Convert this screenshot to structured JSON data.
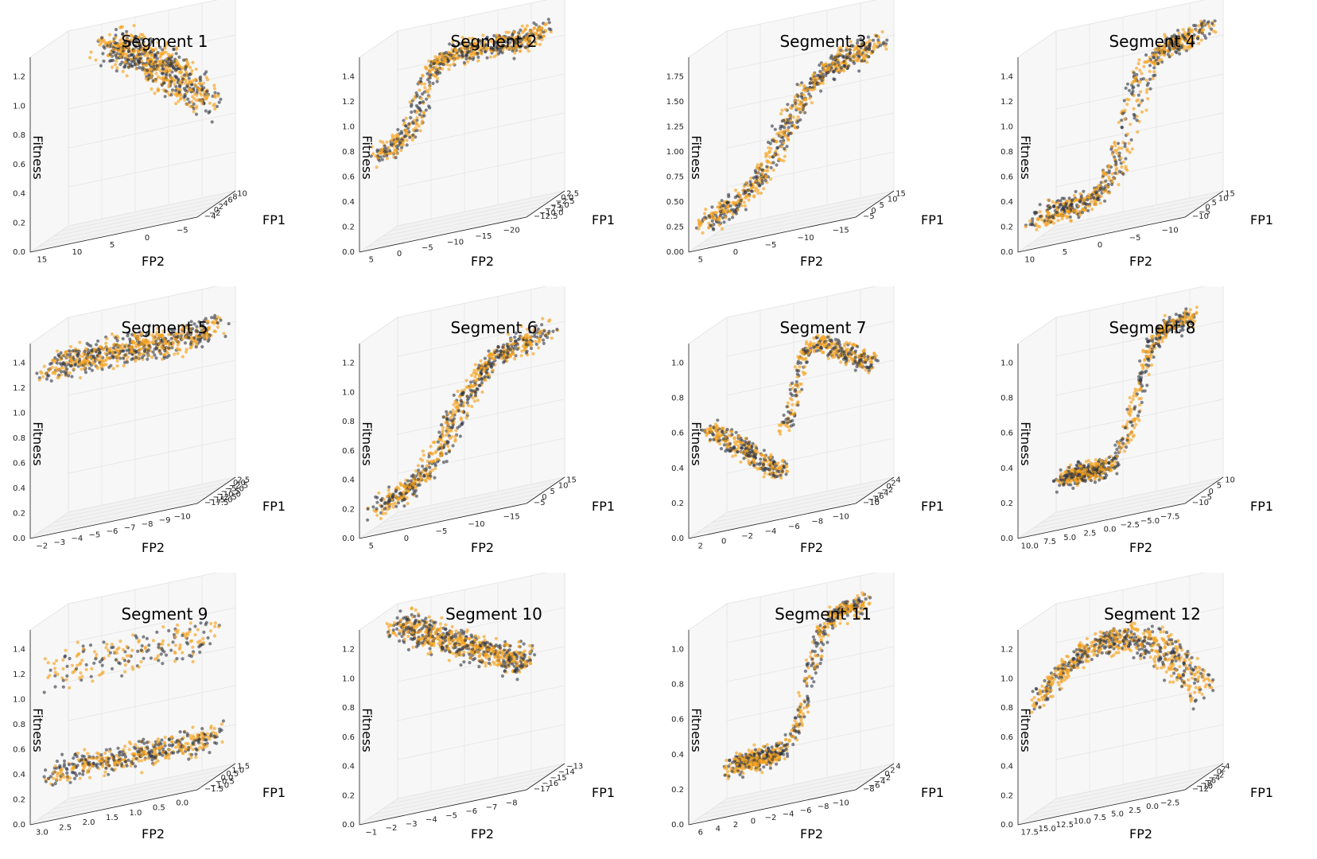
{
  "colors": {
    "series_a": "#f6a31f",
    "series_b": "#2e3440",
    "pane": "#f2f2f2",
    "pane_light": "#f7f7f7",
    "grid": "#e5e5e5",
    "axis": "#222222"
  },
  "chart_data": [
    {
      "type": "scatter3d",
      "title": "Segment 1",
      "xlabel": "FP1",
      "ylabel": "FP2",
      "zlabel": "Fitness",
      "fp1_ticks": [
        "−4",
        "−2",
        "0",
        "2",
        "4",
        "6",
        "8",
        "10"
      ],
      "fp2_ticks": [
        "15",
        "10",
        "5",
        "0",
        "−5"
      ],
      "z_ticks": [
        "0.0",
        "0.2",
        "0.4",
        "0.6",
        "0.8",
        "1.0",
        "1.2"
      ],
      "z_range": [
        0,
        1.25
      ],
      "shape": "blob_top_fall"
    },
    {
      "type": "scatter3d",
      "title": "Segment 2",
      "xlabel": "FP1",
      "ylabel": "FP2",
      "zlabel": "Fitness",
      "fp1_ticks": [
        "−12.5",
        "−10.0",
        "−7.5",
        "−5.0",
        "−2.5",
        "0.0",
        "2.5"
      ],
      "fp2_ticks": [
        "5",
        "0",
        "−5",
        "−10",
        "−15",
        "−20"
      ],
      "z_ticks": [
        "0.0",
        "0.2",
        "0.4",
        "0.6",
        "0.8",
        "1.0",
        "1.2",
        "1.4"
      ],
      "z_range": [
        0,
        1.5
      ],
      "shape": "step_plateau"
    },
    {
      "type": "scatter3d",
      "title": "Segment 3",
      "xlabel": "FP1",
      "ylabel": "FP2",
      "zlabel": "Fitness",
      "fp1_ticks": [
        "−5",
        "0",
        "5",
        "10",
        "15"
      ],
      "fp2_ticks": [
        "5",
        "0",
        "−5",
        "−10",
        "−15"
      ],
      "z_ticks": [
        "0.00",
        "0.25",
        "0.50",
        "0.75",
        "1.00",
        "1.25",
        "1.50",
        "1.75"
      ],
      "z_range": [
        0,
        1.9
      ],
      "shape": "sigmoid"
    },
    {
      "type": "scatter3d",
      "title": "Segment 4",
      "xlabel": "FP1",
      "ylabel": "FP2",
      "zlabel": "Fitness",
      "fp1_ticks": [
        "−10",
        "−5",
        "0",
        "5",
        "10",
        "15"
      ],
      "fp2_ticks": [
        "10",
        "5",
        "0",
        "−5",
        "−10"
      ],
      "z_ticks": [
        "0.0",
        "0.2",
        "0.4",
        "0.6",
        "0.8",
        "1.0",
        "1.2",
        "1.4"
      ],
      "z_range": [
        0,
        1.5
      ],
      "shape": "sigmoid_steep"
    },
    {
      "type": "scatter3d",
      "title": "Segment 5",
      "xlabel": "FP1",
      "ylabel": "FP2",
      "zlabel": "Fitness",
      "fp1_ticks": [
        "−17.5",
        "−15.0",
        "−12.5",
        "−10.0",
        "−7.5",
        "−5.0",
        "−2.5",
        "0.0",
        "2.5"
      ],
      "fp2_ticks": [
        "−2",
        "−3",
        "−4",
        "−5",
        "−6",
        "−7",
        "−8",
        "−9",
        "−10"
      ],
      "z_ticks": [
        "0.0",
        "0.2",
        "0.4",
        "0.6",
        "0.8",
        "1.0",
        "1.2",
        "1.4"
      ],
      "z_range": [
        0,
        1.5
      ],
      "shape": "flat_band"
    },
    {
      "type": "scatter3d",
      "title": "Segment 6",
      "xlabel": "FP1",
      "ylabel": "FP2",
      "zlabel": "Fitness",
      "fp1_ticks": [
        "−5",
        "0",
        "5",
        "10",
        "15"
      ],
      "fp2_ticks": [
        "5",
        "0",
        "−5",
        "−10",
        "−15"
      ],
      "z_ticks": [
        "0.0",
        "0.2",
        "0.4",
        "0.6",
        "0.8",
        "1.0",
        "1.2"
      ],
      "z_range": [
        0,
        1.35
      ],
      "shape": "sigmoid"
    },
    {
      "type": "scatter3d",
      "title": "Segment 7",
      "xlabel": "FP1",
      "ylabel": "FP2",
      "zlabel": "Fitness",
      "fp1_ticks": [
        "−10",
        "−8",
        "−6",
        "−4",
        "−2",
        "0",
        "2",
        "4"
      ],
      "fp2_ticks": [
        "2",
        "0",
        "−2",
        "−4",
        "−6",
        "−8",
        "−10"
      ],
      "z_ticks": [
        "0.0",
        "0.2",
        "0.4",
        "0.6",
        "0.8",
        "1.0"
      ],
      "z_range": [
        0,
        1.15
      ],
      "shape": "vshape"
    },
    {
      "type": "scatter3d",
      "title": "Segment 8",
      "xlabel": "FP1",
      "ylabel": "FP2",
      "zlabel": "Fitness",
      "fp1_ticks": [
        "−10",
        "−5",
        "0",
        "5",
        "10"
      ],
      "fp2_ticks": [
        "10.0",
        "7.5",
        "5.0",
        "2.5",
        "0.0",
        "−2.5",
        "−5.0",
        "−7.5"
      ],
      "z_ticks": [
        "0.0",
        "0.2",
        "0.4",
        "0.6",
        "0.8",
        "1.0"
      ],
      "z_range": [
        0,
        1.15
      ],
      "shape": "cluster_hook"
    },
    {
      "type": "scatter3d",
      "title": "Segment 9",
      "xlabel": "FP1",
      "ylabel": "FP2",
      "zlabel": "Fitness",
      "fp1_ticks": [
        "−1.5",
        "−1.0",
        "−0.5",
        "0.0",
        "0.5",
        "1.0",
        "1.5"
      ],
      "fp2_ticks": [
        "3.0",
        "2.5",
        "2.0",
        "1.5",
        "1.0",
        "0.5",
        "0.0"
      ],
      "z_ticks": [
        "0.0",
        "0.2",
        "0.4",
        "0.6",
        "0.8",
        "1.0",
        "1.2",
        "1.4"
      ],
      "z_range": [
        0,
        1.5
      ],
      "shape": "two_layers"
    },
    {
      "type": "scatter3d",
      "title": "Segment 10",
      "xlabel": "FP1",
      "ylabel": "FP2",
      "zlabel": "Fitness",
      "fp1_ticks": [
        "−17",
        "−16",
        "−15",
        "−14",
        "−13"
      ],
      "fp2_ticks": [
        "−1",
        "−2",
        "−3",
        "−4",
        "−5",
        "−6",
        "−7",
        "−8"
      ],
      "z_ticks": [
        "0.0",
        "0.2",
        "0.4",
        "0.6",
        "0.8",
        "1.0",
        "1.2"
      ],
      "z_range": [
        0,
        1.3
      ],
      "shape": "diagonal_band"
    },
    {
      "type": "scatter3d",
      "title": "Segment 11",
      "xlabel": "FP1",
      "ylabel": "FP2",
      "zlabel": "Fitness",
      "fp1_ticks": [
        "−8",
        "−6",
        "−4",
        "−2",
        "0",
        "2",
        "4"
      ],
      "fp2_ticks": [
        "6",
        "4",
        "2",
        "0",
        "−2",
        "−4",
        "−6",
        "−8",
        "−10"
      ],
      "z_ticks": [
        "0.0",
        "0.2",
        "0.4",
        "0.6",
        "0.8",
        "1.0"
      ],
      "z_range": [
        0,
        1.15
      ],
      "shape": "cluster_hook"
    },
    {
      "type": "scatter3d",
      "title": "Segment 12",
      "xlabel": "FP1",
      "ylabel": "FP2",
      "zlabel": "Fitness",
      "fp1_ticks": [
        "−12",
        "−10",
        "−8",
        "−6",
        "−4",
        "−2",
        "0",
        "2",
        "4"
      ],
      "fp2_ticks": [
        "17.5",
        "15.0",
        "12.5",
        "10.0",
        "7.5",
        "5.0",
        "2.5",
        "0.0",
        "−2.5"
      ],
      "z_ticks": [
        "0.0",
        "0.2",
        "0.4",
        "0.6",
        "0.8",
        "1.0",
        "1.2"
      ],
      "z_range": [
        0,
        1.35
      ],
      "shape": "arch"
    }
  ]
}
